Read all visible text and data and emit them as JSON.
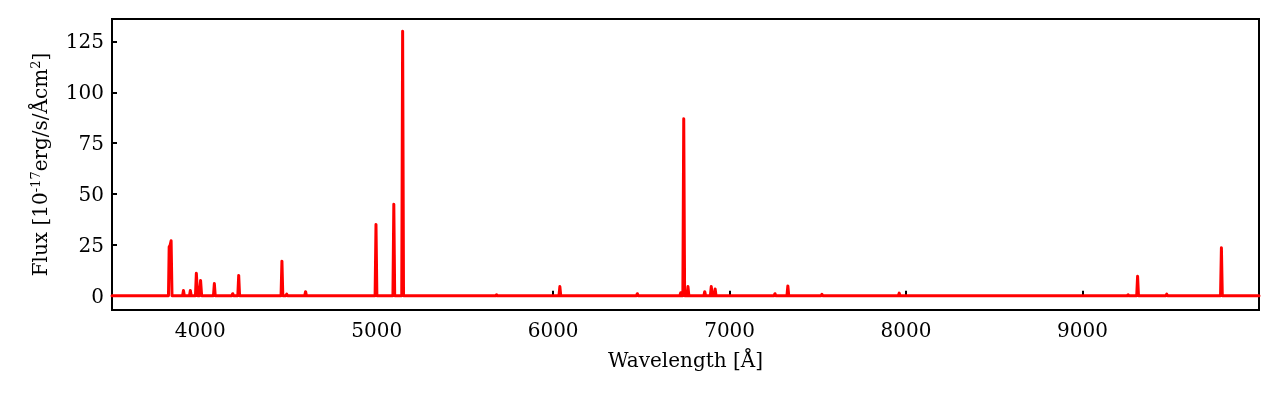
{
  "chart_data": {
    "type": "line",
    "xlabel": "Wavelength [Å]",
    "ylabel": "Flux [10$^{-17}$erg/s/Åcm$^{2}$]",
    "xlim": [
      3500,
      10000
    ],
    "xticks": [
      4000,
      5000,
      6000,
      7000,
      8000,
      9000
    ],
    "ylim": [
      -7,
      136
    ],
    "yticks": [
      0,
      25,
      50,
      75,
      100,
      125
    ],
    "grid": false,
    "line_style": "solid",
    "marker": "none",
    "series": [
      {
        "color": "#ff0000",
        "x": [
          3500,
          3820,
          3824,
          3830,
          3835,
          3840,
          3900,
          3905,
          3910,
          3939,
          3944,
          3949,
          3973,
          3978,
          3985,
          3995,
          4002,
          4008,
          4075,
          4080,
          4085,
          4179,
          4184,
          4189,
          4213,
          4218,
          4223,
          4458,
          4463,
          4468,
          4485,
          4490,
          4495,
          4592,
          4597,
          4602,
          4991,
          4996,
          5001,
          5092,
          5097,
          5102,
          5142,
          5147,
          5152,
          5674,
          5679,
          5684,
          6033,
          6038,
          6043,
          6472,
          6477,
          6482,
          6718,
          6723,
          6728,
          6735,
          6740,
          6745,
          6759,
          6764,
          6769,
          6854,
          6859,
          6864,
          6891,
          6896,
          6902,
          6912,
          6918,
          6923,
          7252,
          7257,
          7262,
          7325,
          7330,
          7335,
          7518,
          7523,
          7528,
          7956,
          7961,
          7966,
          9253,
          9258,
          9263,
          9307,
          9312,
          9317,
          9472,
          9477,
          9482,
          9782,
          9787,
          9792,
          10000
        ],
        "values": [
          0,
          0,
          24,
          25,
          27,
          0,
          0,
          2.6,
          0,
          0,
          2.6,
          0,
          0,
          11,
          0,
          0,
          7.5,
          0,
          0,
          6,
          0,
          0,
          1,
          0,
          0,
          10,
          0,
          0,
          17,
          0,
          0,
          0.8,
          0,
          0,
          2,
          0,
          0,
          35,
          0,
          0,
          45,
          0,
          0,
          130,
          0,
          0,
          0.5,
          0,
          0,
          4.5,
          0,
          0,
          1,
          0,
          0,
          1.5,
          0,
          0,
          87,
          0,
          0,
          4.5,
          0,
          0,
          2,
          0,
          0,
          4.5,
          0,
          0,
          3.3,
          0,
          0,
          1,
          0,
          0,
          4.8,
          0,
          0,
          0.7,
          0,
          0,
          1.3,
          0,
          0,
          0.5,
          0,
          0,
          9.6,
          0,
          0,
          0.8,
          0,
          0,
          23.6,
          0,
          0
        ]
      }
    ]
  }
}
